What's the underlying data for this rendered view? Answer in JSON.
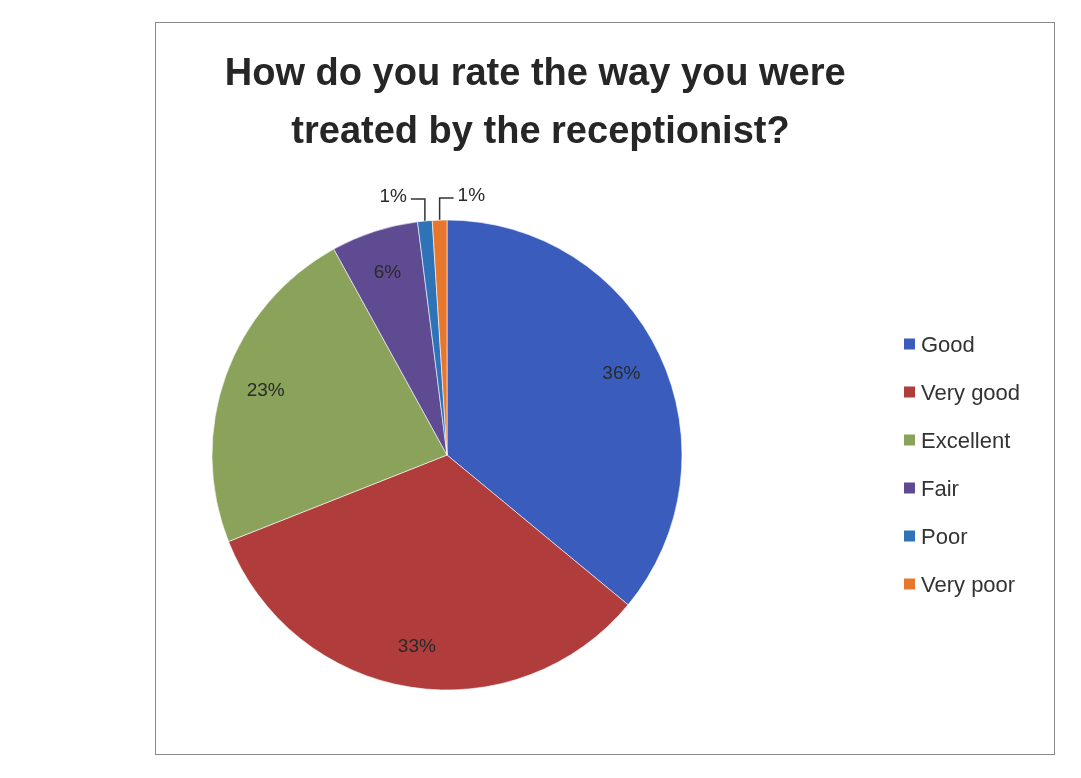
{
  "chart_data": {
    "type": "pie",
    "title": "How do you rate the way you were treated by the receptionist?",
    "categories": [
      "Good",
      "Very good",
      "Excellent",
      "Fair",
      "Poor",
      "Very poor"
    ],
    "values": [
      36,
      33,
      23,
      6,
      1,
      1
    ],
    "colors": [
      "#3a5cbc",
      "#b03c3c",
      "#8aa25a",
      "#5f4b92",
      "#2e72b8",
      "#e8772e"
    ],
    "value_labels": [
      "36%",
      "33%",
      "23%",
      "6%",
      "1%",
      "1%"
    ],
    "legend": "right"
  }
}
